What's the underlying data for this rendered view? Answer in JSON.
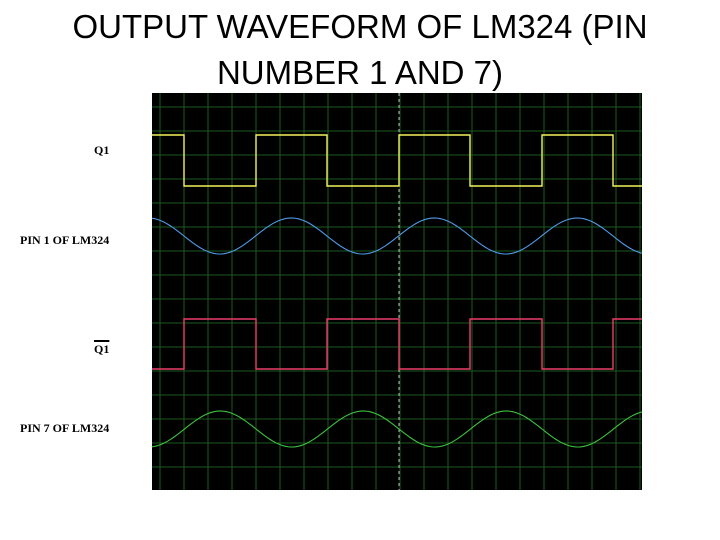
{
  "title": {
    "line1": "OUTPUT WAVEFORM OF LM324 (PIN",
    "line2": "NUMBER 1 AND 7)"
  },
  "labels": {
    "q1": "Q1",
    "q1_bar": "Q1",
    "pin1": "PIN 1 OF LM324",
    "pin7": "PIN 7 OF LM324"
  },
  "colors": {
    "screen": "#000000",
    "grid": "#1d5a1d",
    "center_marker": "#bbbbbb",
    "q1": "#f2f25a",
    "pin1": "#4f9ae8",
    "q1_bar": "#ee3d6a",
    "pin7": "#3ec23e"
  }
}
